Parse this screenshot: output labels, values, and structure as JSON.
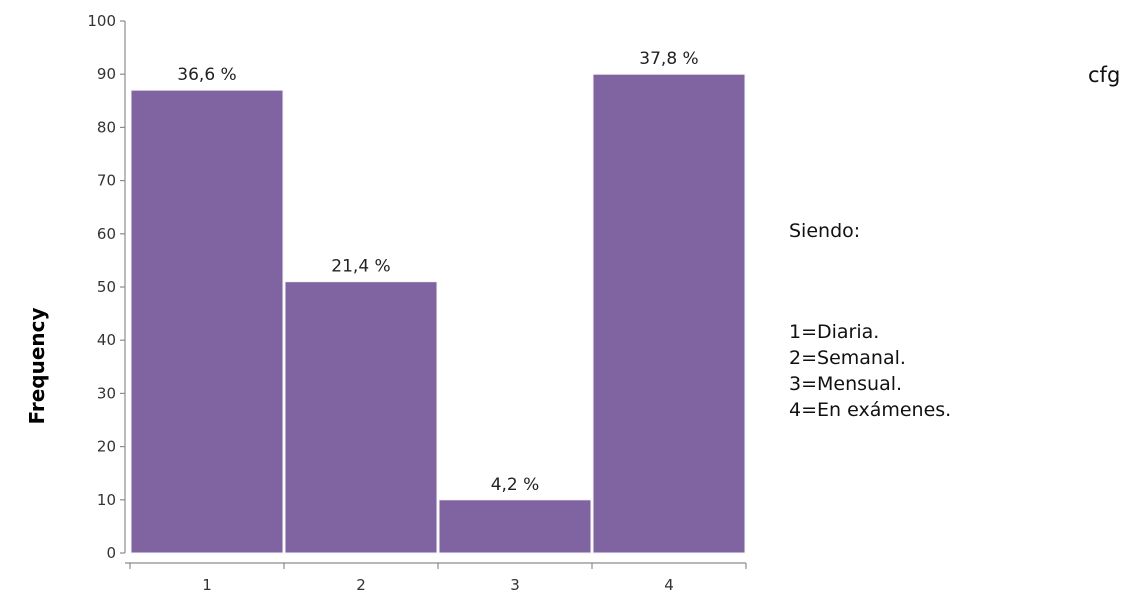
{
  "corner_note": "cfg",
  "legend": {
    "heading": "Siendo:",
    "items": [
      "1=Diaria.",
      "2=Semanal.",
      "3=Mensual.",
      "4=En exámenes."
    ]
  },
  "chart_data": {
    "type": "bar",
    "categories": [
      "1",
      "2",
      "3",
      "4"
    ],
    "values": [
      87,
      51,
      10,
      90
    ],
    "data_labels": [
      "36,6 %",
      "21,4 %",
      "4,2 %",
      "37,8 %"
    ],
    "title": "",
    "xlabel": "",
    "ylabel": "Frequency",
    "ylim": [
      0,
      100
    ],
    "yticks": [
      0,
      10,
      20,
      30,
      40,
      50,
      60,
      70,
      80,
      90,
      100
    ],
    "grid": false,
    "legend_position": "right",
    "colors": {
      "bar": "#8064A2",
      "bar_edge": "#f4f4f4",
      "axis": "#8c8c8c"
    }
  }
}
